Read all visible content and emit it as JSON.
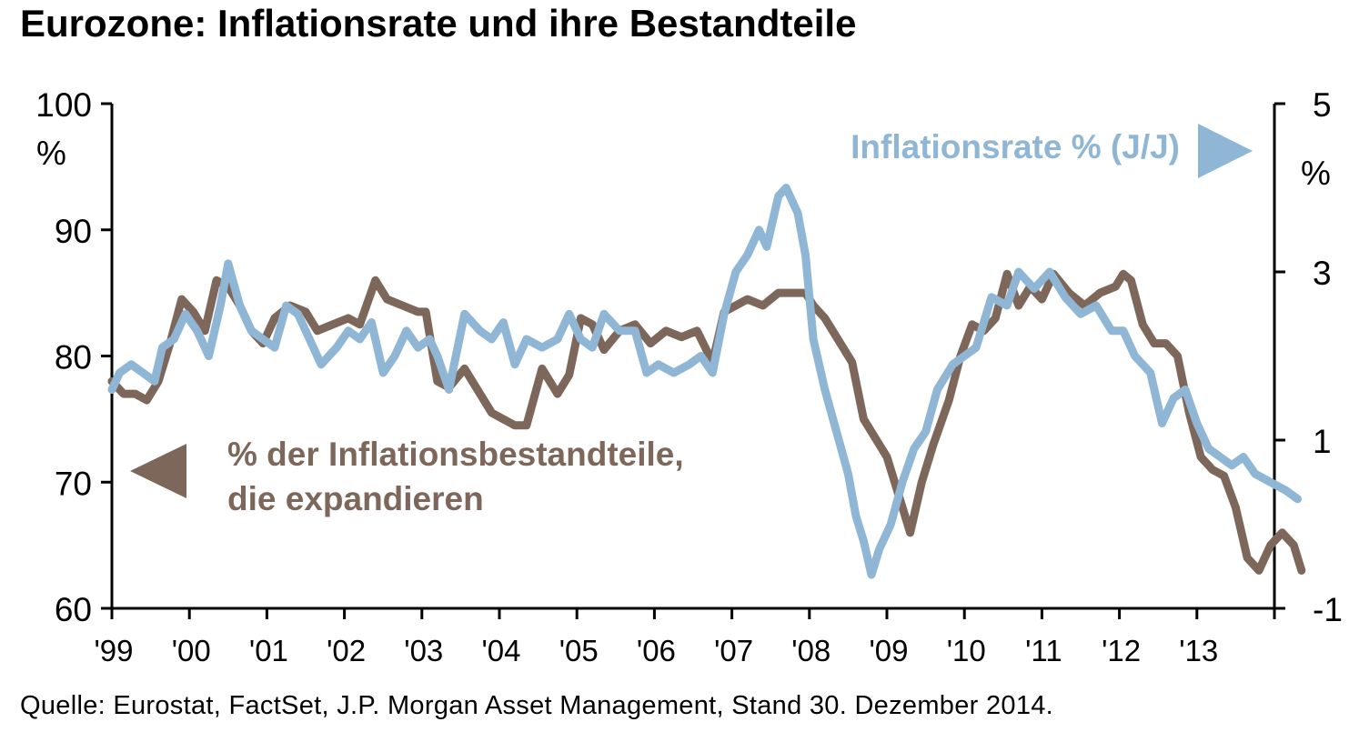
{
  "title": "Eurozone: Inflationsrate und ihre Bestandteile",
  "source": "Quelle: Eurostat, FactSet, J.P. Morgan Asset Management, Stand 30. Dezember 2014.",
  "colors": {
    "components": "#7d675b",
    "inflation": "#8fb6d4",
    "axis": "#000000"
  },
  "chart_data": {
    "type": "line",
    "x": [
      "'99",
      "'00",
      "'01",
      "'02",
      "'03",
      "'04",
      "'05",
      "'06",
      "'07",
      "'08",
      "'09",
      "'10",
      "'11",
      "'12",
      "'13"
    ],
    "xlim": [
      1999.0,
      2014.0
    ],
    "y_left": {
      "unit": "%",
      "ylim": [
        60,
        100
      ],
      "ticks": [
        "60",
        "70",
        "80",
        "90",
        "100"
      ]
    },
    "y_right": {
      "unit": "%",
      "ylim": [
        -1,
        5
      ],
      "ticks": [
        "-1",
        "1",
        "3",
        "5"
      ]
    },
    "grid": false,
    "series": [
      {
        "name": "% der Inflationsbestandteile, die expandieren",
        "label_lines": [
          "% der Inflationsbestandteile,",
          "die expandieren"
        ],
        "axis": "left",
        "color": "#7d675b",
        "points": [
          [
            1999.0,
            78.0
          ],
          [
            1999.15,
            77.0
          ],
          [
            1999.3,
            77.0
          ],
          [
            1999.45,
            76.5
          ],
          [
            1999.6,
            78.0
          ],
          [
            1999.75,
            81.0
          ],
          [
            1999.9,
            84.5
          ],
          [
            2000.05,
            83.5
          ],
          [
            2000.2,
            82.0
          ],
          [
            2000.35,
            86.0
          ],
          [
            2000.5,
            85.5
          ],
          [
            2000.65,
            84.0
          ],
          [
            2000.8,
            82.0
          ],
          [
            2000.95,
            81.0
          ],
          [
            2001.1,
            83.0
          ],
          [
            2001.3,
            84.0
          ],
          [
            2001.5,
            83.5
          ],
          [
            2001.65,
            82.0
          ],
          [
            2001.85,
            82.5
          ],
          [
            2002.05,
            83.0
          ],
          [
            2002.2,
            82.5
          ],
          [
            2002.4,
            86.0
          ],
          [
            2002.55,
            84.5
          ],
          [
            2002.75,
            84.0
          ],
          [
            2002.95,
            83.5
          ],
          [
            2003.05,
            83.5
          ],
          [
            2003.2,
            78.0
          ],
          [
            2003.35,
            77.5
          ],
          [
            2003.55,
            79.0
          ],
          [
            2003.75,
            77.0
          ],
          [
            2003.9,
            75.5
          ],
          [
            2004.05,
            75.0
          ],
          [
            2004.2,
            74.5
          ],
          [
            2004.35,
            74.5
          ],
          [
            2004.55,
            79.0
          ],
          [
            2004.75,
            77.0
          ],
          [
            2004.9,
            78.5
          ],
          [
            2005.05,
            83.0
          ],
          [
            2005.2,
            82.5
          ],
          [
            2005.35,
            80.5
          ],
          [
            2005.55,
            82.0
          ],
          [
            2005.75,
            82.5
          ],
          [
            2005.95,
            81.0
          ],
          [
            2006.15,
            82.0
          ],
          [
            2006.35,
            81.5
          ],
          [
            2006.55,
            82.0
          ],
          [
            2006.75,
            79.5
          ],
          [
            2006.9,
            83.5
          ],
          [
            2007.05,
            84.0
          ],
          [
            2007.2,
            84.5
          ],
          [
            2007.4,
            84.0
          ],
          [
            2007.6,
            85.0
          ],
          [
            2007.8,
            85.0
          ],
          [
            2007.95,
            85.0
          ],
          [
            2008.05,
            84.0
          ],
          [
            2008.2,
            83.0
          ],
          [
            2008.4,
            81.0
          ],
          [
            2008.55,
            79.5
          ],
          [
            2008.7,
            75.0
          ],
          [
            2008.85,
            73.5
          ],
          [
            2009.0,
            72.0
          ],
          [
            2009.15,
            69.0
          ],
          [
            2009.3,
            66.0
          ],
          [
            2009.45,
            70.0
          ],
          [
            2009.6,
            73.0
          ],
          [
            2009.8,
            76.5
          ],
          [
            2009.95,
            80.0
          ],
          [
            2010.1,
            82.5
          ],
          [
            2010.25,
            82.0
          ],
          [
            2010.4,
            83.0
          ],
          [
            2010.55,
            86.5
          ],
          [
            2010.7,
            84.0
          ],
          [
            2010.85,
            85.5
          ],
          [
            2011.0,
            84.5
          ],
          [
            2011.15,
            86.5
          ],
          [
            2011.35,
            85.0
          ],
          [
            2011.55,
            84.0
          ],
          [
            2011.75,
            85.0
          ],
          [
            2011.95,
            85.5
          ],
          [
            2012.05,
            86.5
          ],
          [
            2012.15,
            86.0
          ],
          [
            2012.3,
            82.5
          ],
          [
            2012.45,
            81.0
          ],
          [
            2012.6,
            81.0
          ],
          [
            2012.75,
            80.0
          ],
          [
            2012.9,
            75.5
          ],
          [
            2013.05,
            72.0
          ],
          [
            2013.2,
            71.0
          ],
          [
            2013.35,
            70.5
          ],
          [
            2013.5,
            68.0
          ],
          [
            2013.65,
            64.0
          ],
          [
            2013.8,
            63.0
          ],
          [
            2013.95,
            65.0
          ],
          [
            2014.1,
            66.0
          ],
          [
            2014.25,
            65.0
          ],
          [
            2014.35,
            63.0
          ]
        ]
      },
      {
        "name": "Inflationsrate % (J/J)",
        "axis": "right",
        "color": "#8fb6d4",
        "points": [
          [
            1999.0,
            1.6
          ],
          [
            1999.1,
            1.8
          ],
          [
            1999.25,
            1.9
          ],
          [
            1999.4,
            1.8
          ],
          [
            1999.55,
            1.7
          ],
          [
            1999.65,
            2.1
          ],
          [
            1999.8,
            2.2
          ],
          [
            1999.95,
            2.5
          ],
          [
            2000.1,
            2.3
          ],
          [
            2000.25,
            2.0
          ],
          [
            2000.4,
            2.6
          ],
          [
            2000.5,
            3.1
          ],
          [
            2000.65,
            2.6
          ],
          [
            2000.8,
            2.3
          ],
          [
            2000.95,
            2.2
          ],
          [
            2001.1,
            2.1
          ],
          [
            2001.25,
            2.6
          ],
          [
            2001.4,
            2.5
          ],
          [
            2001.55,
            2.2
          ],
          [
            2001.7,
            1.9
          ],
          [
            2001.9,
            2.1
          ],
          [
            2002.05,
            2.3
          ],
          [
            2002.2,
            2.2
          ],
          [
            2002.35,
            2.4
          ],
          [
            2002.5,
            1.8
          ],
          [
            2002.65,
            2.0
          ],
          [
            2002.8,
            2.3
          ],
          [
            2002.95,
            2.1
          ],
          [
            2003.1,
            2.2
          ],
          [
            2003.2,
            2.0
          ],
          [
            2003.35,
            1.6
          ],
          [
            2003.55,
            2.5
          ],
          [
            2003.75,
            2.3
          ],
          [
            2003.9,
            2.2
          ],
          [
            2004.05,
            2.4
          ],
          [
            2004.2,
            1.9
          ],
          [
            2004.35,
            2.2
          ],
          [
            2004.55,
            2.1
          ],
          [
            2004.75,
            2.2
          ],
          [
            2004.9,
            2.5
          ],
          [
            2005.05,
            2.2
          ],
          [
            2005.2,
            2.1
          ],
          [
            2005.35,
            2.5
          ],
          [
            2005.55,
            2.3
          ],
          [
            2005.75,
            2.3
          ],
          [
            2005.9,
            1.8
          ],
          [
            2006.05,
            1.9
          ],
          [
            2006.25,
            1.8
          ],
          [
            2006.45,
            1.9
          ],
          [
            2006.6,
            2.0
          ],
          [
            2006.75,
            1.8
          ],
          [
            2006.9,
            2.5
          ],
          [
            2007.05,
            3.0
          ],
          [
            2007.2,
            3.2
          ],
          [
            2007.35,
            3.5
          ],
          [
            2007.45,
            3.3
          ],
          [
            2007.6,
            3.9
          ],
          [
            2007.7,
            4.0
          ],
          [
            2007.85,
            3.7
          ],
          [
            2007.95,
            3.2
          ],
          [
            2008.05,
            2.2
          ],
          [
            2008.2,
            1.6
          ],
          [
            2008.35,
            1.1
          ],
          [
            2008.5,
            0.6
          ],
          [
            2008.6,
            0.1
          ],
          [
            2008.7,
            -0.2
          ],
          [
            2008.8,
            -0.6
          ],
          [
            2008.9,
            -0.3
          ],
          [
            2009.05,
            0.0
          ],
          [
            2009.2,
            0.5
          ],
          [
            2009.35,
            0.9
          ],
          [
            2009.5,
            1.1
          ],
          [
            2009.65,
            1.6
          ],
          [
            2009.85,
            1.9
          ],
          [
            2010.0,
            2.0
          ],
          [
            2010.15,
            2.1
          ],
          [
            2010.35,
            2.7
          ],
          [
            2010.55,
            2.6
          ],
          [
            2010.7,
            3.0
          ],
          [
            2010.9,
            2.8
          ],
          [
            2011.1,
            3.0
          ],
          [
            2011.3,
            2.7
          ],
          [
            2011.5,
            2.5
          ],
          [
            2011.7,
            2.6
          ],
          [
            2011.9,
            2.3
          ],
          [
            2012.05,
            2.3
          ],
          [
            2012.2,
            2.0
          ],
          [
            2012.4,
            1.8
          ],
          [
            2012.55,
            1.2
          ],
          [
            2012.7,
            1.5
          ],
          [
            2012.85,
            1.6
          ],
          [
            2013.0,
            1.2
          ],
          [
            2013.15,
            0.9
          ],
          [
            2013.3,
            0.8
          ],
          [
            2013.45,
            0.7
          ],
          [
            2013.6,
            0.8
          ],
          [
            2013.75,
            0.6
          ],
          [
            2013.95,
            0.5
          ],
          [
            2014.15,
            0.4
          ],
          [
            2014.3,
            0.3
          ]
        ]
      }
    ],
    "annotations": [
      {
        "text": "Inflationsrate % (J/J)",
        "marker": "right-triangle"
      },
      {
        "text": "% der Inflationsbestandteile, die expandieren",
        "marker": "left-triangle"
      }
    ]
  }
}
